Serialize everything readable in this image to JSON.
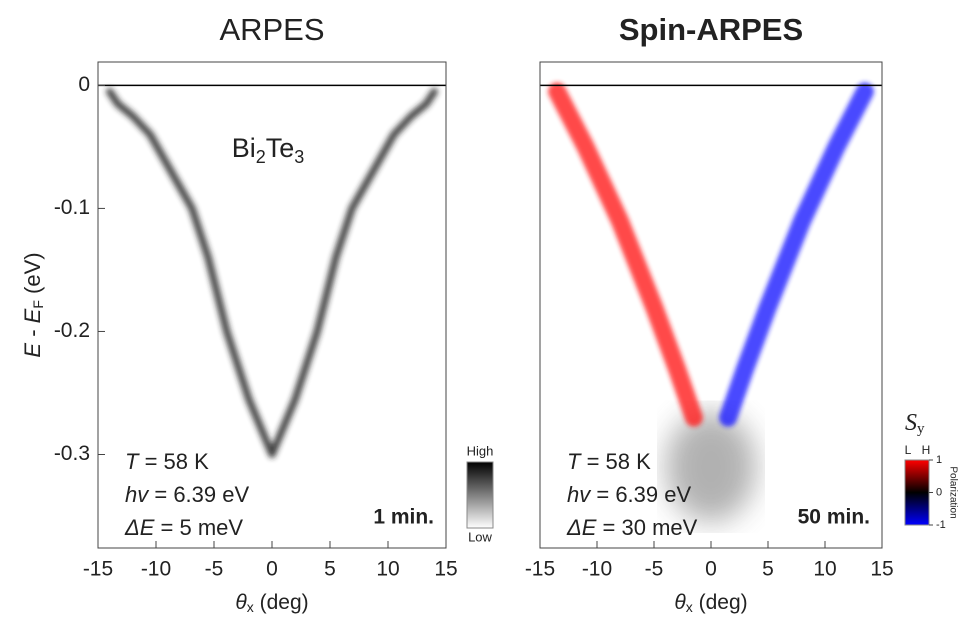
{
  "chart_data": [
    {
      "type": "line",
      "title": "ARPES",
      "title_color": "#000000",
      "sample_label": [
        "Bi",
        "2",
        "Te",
        "3"
      ],
      "x_label": [
        "θ",
        "x",
        " (deg)"
      ],
      "y_label": [
        "E",
        " - ",
        "E",
        "F",
        " (eV)"
      ],
      "annotations": [
        [
          "T",
          " = 58 K"
        ],
        [
          "hv",
          " = 6.39 eV"
        ],
        [
          "ΔE",
          " = 5 meV"
        ]
      ],
      "time_label": "1 min.",
      "series": [
        {
          "color": "#222222",
          "x": [
            -14,
            -13.3,
            -12,
            -10.5,
            -9,
            -6.9,
            -5.5,
            -3.9,
            -2,
            0,
            2,
            3.9,
            5.5,
            6.9,
            9,
            10.5,
            12,
            13.3,
            14
          ],
          "values": [
            -0.005,
            -0.015,
            -0.025,
            -0.04,
            -0.065,
            -0.1,
            -0.14,
            -0.2,
            -0.255,
            -0.3,
            -0.255,
            -0.2,
            -0.14,
            -0.1,
            -0.065,
            -0.04,
            -0.025,
            -0.015,
            -0.005
          ]
        }
      ],
      "xlim": [
        -15,
        15
      ],
      "ylim": [
        -0.376,
        0.019
      ],
      "xticks": [
        -15,
        -10,
        -5,
        0,
        5,
        10,
        15
      ],
      "yticks": [
        0,
        -0.1,
        -0.2,
        -0.3
      ],
      "colorbar": {
        "labels": [
          "High",
          "Low"
        ],
        "colors": [
          "#000000",
          "#ffffff"
        ]
      }
    },
    {
      "type": "line",
      "title": "Spin-ARPES",
      "title_color": "#e8141c",
      "x_label": [
        "θ",
        "x",
        " (deg)"
      ],
      "annotations": [
        [
          "T",
          " = 58 K"
        ],
        [
          "hv",
          " = 6.39 eV"
        ],
        [
          "ΔE",
          " = 30 meV"
        ]
      ],
      "time_label": "50 min.",
      "series": [
        {
          "color": "#ff1a1a",
          "x": [
            -13.5,
            -11,
            -8,
            -5,
            -3,
            -1.5
          ],
          "values": [
            -0.005,
            -0.05,
            -0.11,
            -0.18,
            -0.23,
            -0.27
          ]
        },
        {
          "color": "#1a1aff",
          "x": [
            13.5,
            11,
            8,
            5,
            3,
            1.5
          ],
          "values": [
            -0.005,
            -0.05,
            -0.11,
            -0.18,
            -0.23,
            -0.27
          ]
        }
      ],
      "xlim": [
        -15,
        15
      ],
      "ylim": [
        -0.376,
        0.019
      ],
      "xticks": [
        -15,
        -10,
        -5,
        0,
        5,
        10,
        15
      ],
      "colorbar": {
        "symbol": [
          "S",
          "y"
        ],
        "end_labels": [
          "L",
          "H"
        ],
        "ticks": [
          1,
          0,
          -1
        ],
        "title": "Polarization",
        "colors": [
          "#ff0000",
          "#000000",
          "#0000ff"
        ]
      }
    }
  ]
}
